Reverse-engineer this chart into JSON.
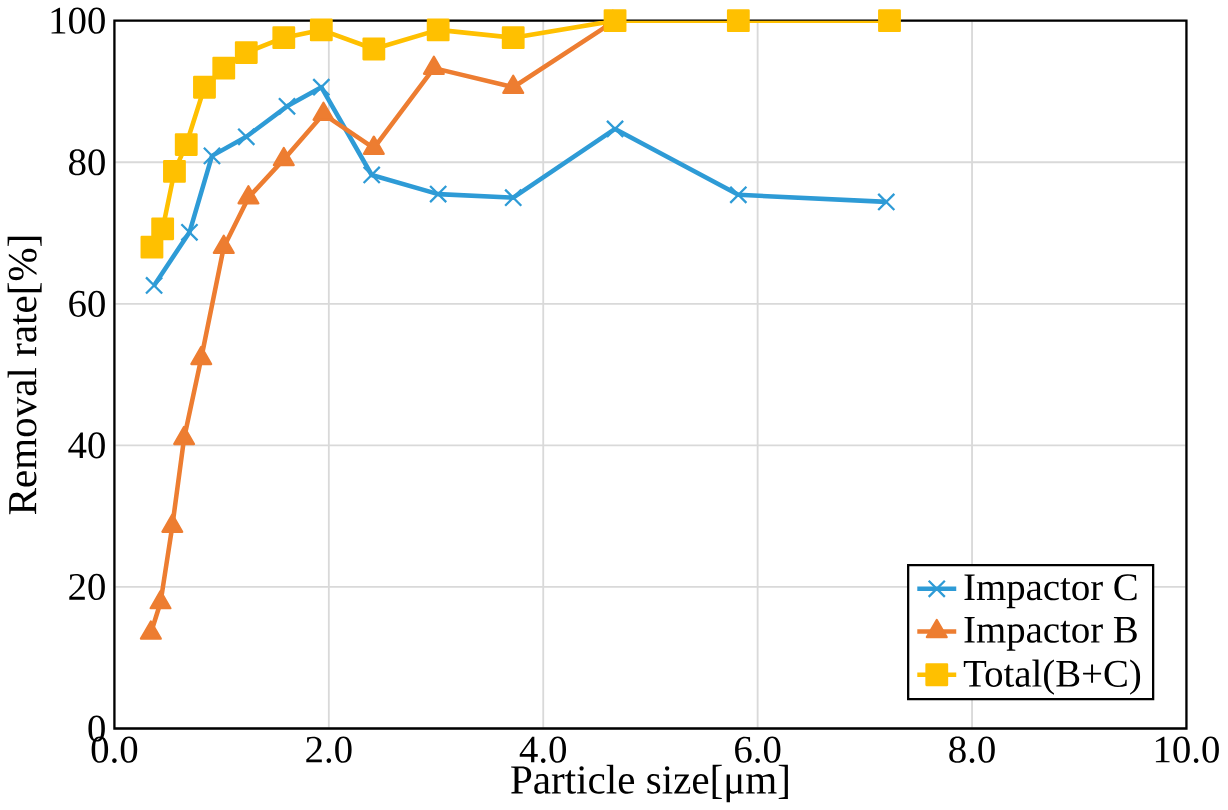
{
  "chart_data": {
    "type": "line",
    "xlabel": "Particle size[μm]",
    "ylabel": "Removal rate[%]",
    "xlim": [
      0,
      10
    ],
    "ylim": [
      0,
      100
    ],
    "xticks": [
      {
        "value": 0,
        "label": "0.0"
      },
      {
        "value": 2,
        "label": "2.0"
      },
      {
        "value": 4,
        "label": "4.0"
      },
      {
        "value": 6,
        "label": "6.0"
      },
      {
        "value": 8,
        "label": "8.0"
      },
      {
        "value": 10,
        "label": "10.0"
      }
    ],
    "yticks": [
      0,
      20,
      40,
      60,
      80,
      100
    ],
    "grid": true,
    "legend": "bottom right",
    "series": [
      {
        "name": "Impactor C",
        "color": "#2e9bd6",
        "marker": "cross",
        "x": [
          0.37,
          0.7,
          0.91,
          1.23,
          1.61,
          1.93,
          2.4,
          3.02,
          3.72,
          4.67,
          5.82,
          7.2
        ],
        "values": [
          62.6,
          70.1,
          80.9,
          83.6,
          87.9,
          90.6,
          78.2,
          75.5,
          75,
          84.7,
          75.4,
          74.4
        ]
      },
      {
        "name": "Impactor B",
        "color": "#ed7d31",
        "marker": "triangle",
        "x": [
          0.34,
          0.43,
          0.54,
          0.65,
          0.81,
          1.02,
          1.25,
          1.58,
          1.95,
          2.42,
          2.98,
          3.72,
          4.65
        ],
        "values": [
          13.5,
          17.8,
          28.6,
          41,
          52.3,
          68,
          75,
          80.4,
          86.8,
          82,
          93.3,
          90.6,
          99.8
        ]
      },
      {
        "name": "Total(B+C)",
        "color": "#ffc000",
        "marker": "square",
        "x": [
          0.35,
          0.45,
          0.56,
          0.67,
          0.84,
          1.02,
          1.23,
          1.58,
          1.93,
          2.42,
          3.02,
          3.72,
          4.67,
          5.82,
          7.23
        ],
        "values": [
          68,
          70.6,
          78.7,
          82.5,
          90.6,
          93.3,
          95.5,
          97.6,
          98.7,
          96,
          98.7,
          97.6,
          100,
          100,
          100
        ]
      }
    ]
  }
}
